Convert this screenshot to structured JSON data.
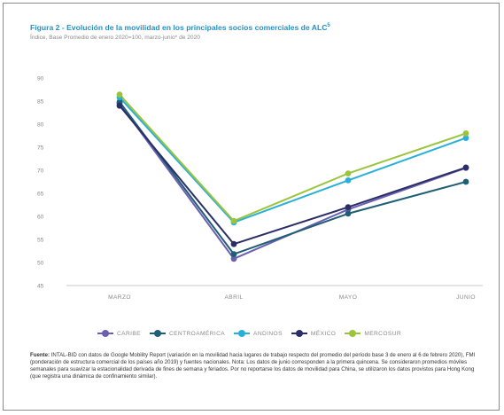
{
  "figure": {
    "title": "Figura 2 - Evolución de la movilidad en los principales socios comerciales de ALC",
    "title_sup": "5",
    "subtitle": "Índice, Base Promedio de enero 2020=100, marzo-junio* de 2020"
  },
  "chart_data": {
    "type": "line",
    "title": "Figura 2 - Evolución de la movilidad en los principales socios comerciales de ALC",
    "xlabel": "",
    "ylabel": "",
    "categories": [
      "MARZO",
      "ABRIL",
      "MAYO",
      "JUNIO"
    ],
    "ylim": [
      45,
      90
    ],
    "yticks": [
      45,
      50,
      55,
      60,
      65,
      70,
      75,
      80,
      85,
      90
    ],
    "grid": false,
    "legend_position": "bottom",
    "series": [
      {
        "name": "CARIBE",
        "color": "#6a5fb0",
        "values": [
          84.5,
          50.8,
          61.5,
          70.5
        ]
      },
      {
        "name": "CENTROAMÉRICA",
        "color": "#1f5f75",
        "values": [
          84.8,
          51.8,
          60.6,
          67.5
        ]
      },
      {
        "name": "ANDINOS",
        "color": "#2ab0d8",
        "values": [
          85.8,
          58.7,
          67.8,
          77.0
        ]
      },
      {
        "name": "MÉXICO",
        "color": "#2b2e66",
        "values": [
          84.0,
          54.0,
          62.0,
          70.6
        ]
      },
      {
        "name": "MERCOSUR",
        "color": "#9bc43d",
        "values": [
          86.4,
          59.0,
          69.3,
          78.0
        ]
      }
    ]
  },
  "source": {
    "label": "Fuente:",
    "text": "INTAL-BID con datos de Google Mobility Report (variación en la movilidad hacia lugares de trabajo respecto del promedio del período base 3 de enero al 6 de febrero 2020), FMI (ponderación de estructura comercial de los países año 2019) y fuentes nacionales. Nota: Los datos de junio corresponden a la primera quincena. Se consideraron promedios móviles semanales para suavizar la estacionalidad derivada de fines de semana y feriados. Por no reportarse los datos de movilidad para China, se utilizaron los datos provistos para Hong Kong (que registra una dinámica de confinamiento similar)."
  }
}
